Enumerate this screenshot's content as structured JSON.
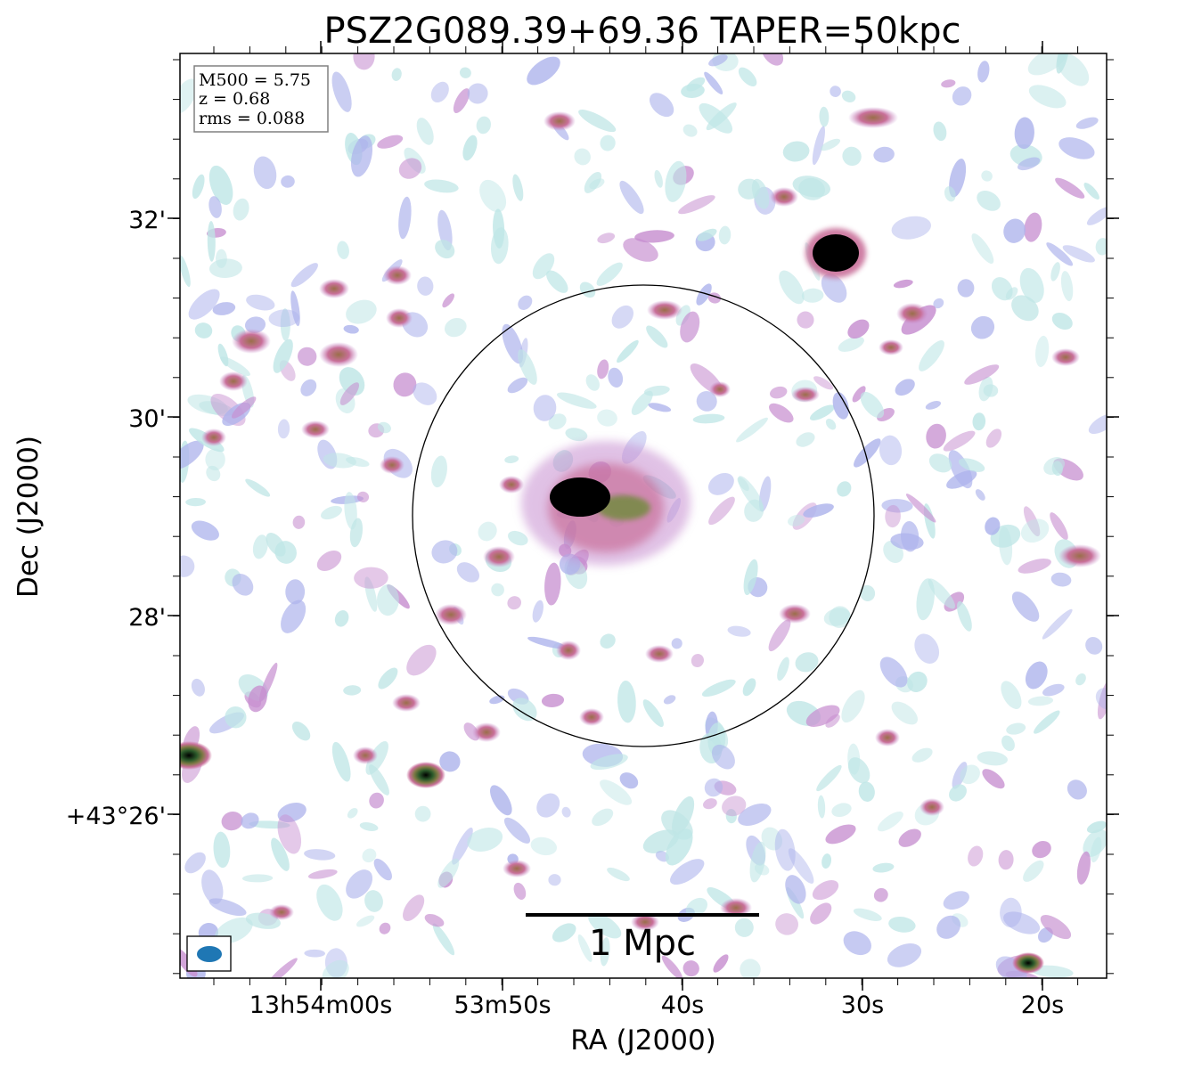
{
  "figure": {
    "title": "PSZ2G089.39+69.36 TAPER=50kpc",
    "x_axis_label": "RA (J2000)",
    "y_axis_label": "Dec (J2000)",
    "x_ticks": [
      "13h54m00s",
      "53m50s",
      "40s",
      "30s",
      "20s"
    ],
    "y_ticks": [
      "32'",
      "30'",
      "28'",
      "+43°26'"
    ],
    "info_box": {
      "m500": "M500 = 5.75",
      "z": "z = 0.68",
      "rms": "rms = 0.088"
    },
    "scale_bar_label": "1 Mpc"
  },
  "colors": {
    "background": "#ffffff",
    "faint_emission": "#bfe6e6",
    "low_emission": "#aeb4ec",
    "mid_emission": "#c9709a",
    "high_emission": "#3f7a2f",
    "peak_emission": "#000000",
    "beam": "#1f77b4"
  }
}
